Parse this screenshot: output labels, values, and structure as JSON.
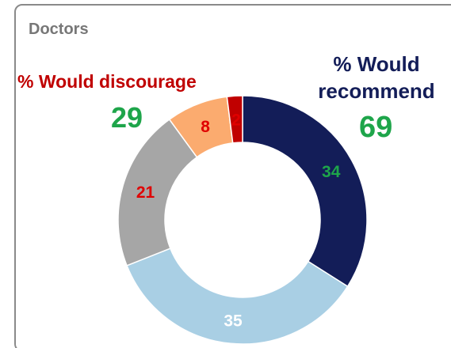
{
  "chart_data": {
    "type": "donut",
    "title": "Doctors",
    "categories": [
      null,
      null,
      null,
      null,
      null
    ],
    "values": [
      34,
      35,
      21,
      8,
      2
    ],
    "colors": [
      "#131d58",
      "#a9cfe4",
      "#a6a6a6",
      "#fbab6f",
      "#c00000"
    ],
    "label_colors": [
      "#1ea54a",
      "#ffffff",
      "#e00000",
      "#e00000",
      "#e00000"
    ],
    "annotations": [
      {
        "text": "% Would discourage",
        "color": "#c00000"
      },
      {
        "text": "29",
        "color": "#1ea54a"
      },
      {
        "text": "% Would recommend",
        "color": "#131d58"
      },
      {
        "text": "69",
        "color": "#1ea54a"
      }
    ]
  }
}
